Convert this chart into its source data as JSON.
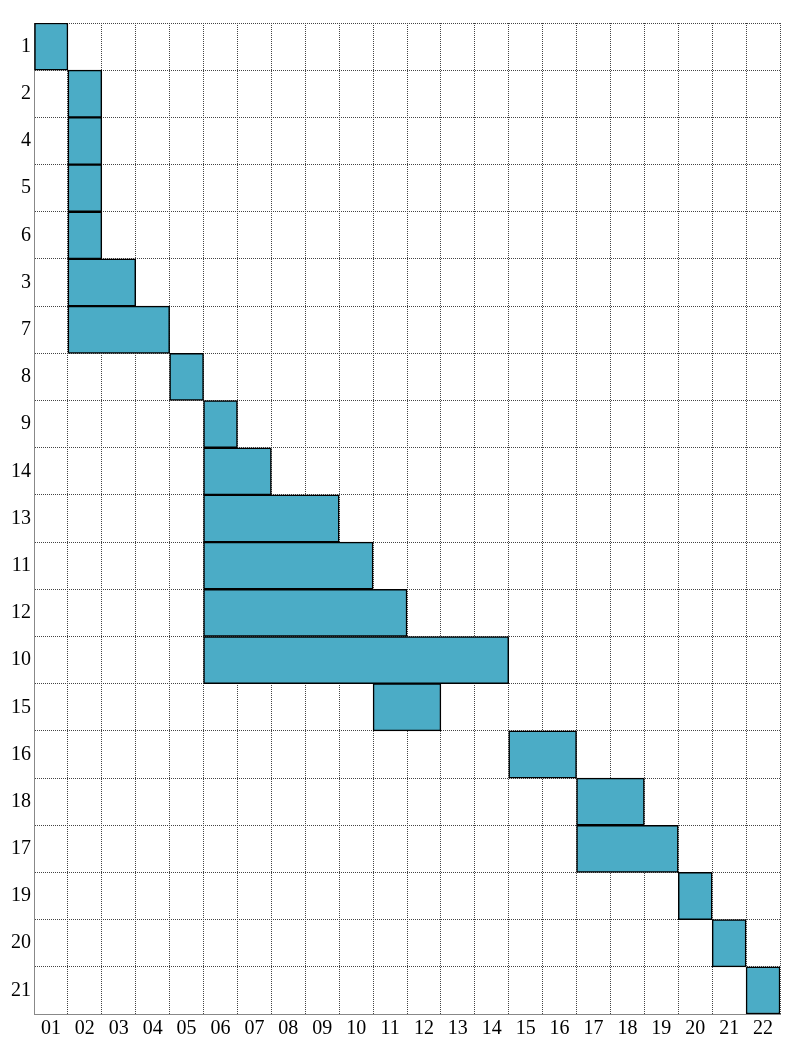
{
  "chart_data": {
    "type": "bar",
    "orientation": "horizontal",
    "color": "#4bacc6",
    "categories": [
      "1",
      "2",
      "4",
      "5",
      "6",
      "3",
      "7",
      "8",
      "9",
      "14",
      "13",
      "11",
      "12",
      "10",
      "15",
      "16",
      "18",
      "17",
      "19",
      "20",
      "21"
    ],
    "base": [
      0,
      1,
      1,
      1,
      1,
      1,
      1,
      4,
      5,
      5,
      5,
      5,
      5,
      5,
      10,
      14,
      16,
      16,
      19,
      20,
      21
    ],
    "values": [
      1,
      1,
      1,
      1,
      1,
      2,
      3,
      1,
      1,
      2,
      4,
      5,
      6,
      9,
      2,
      2,
      2,
      3,
      1,
      1,
      1
    ],
    "xlim": [
      0,
      22
    ],
    "xticks": [
      {
        "value": 0,
        "label": null
      },
      {
        "value": 0.5,
        "label": "01"
      },
      {
        "value": 1,
        "label": null
      },
      {
        "value": 1.5,
        "label": "02"
      },
      {
        "value": 2,
        "label": null
      },
      {
        "value": 2.5,
        "label": "03"
      },
      {
        "value": 3,
        "label": null
      },
      {
        "value": 3.5,
        "label": "04"
      },
      {
        "value": 4,
        "label": null
      },
      {
        "value": 4.5,
        "label": "05"
      },
      {
        "value": 5,
        "label": null
      },
      {
        "value": 5.5,
        "label": "06"
      },
      {
        "value": 6,
        "label": null
      },
      {
        "value": 6.5,
        "label": "07"
      },
      {
        "value": 7,
        "label": null
      },
      {
        "value": 7.5,
        "label": "08"
      },
      {
        "value": 8,
        "label": null
      },
      {
        "value": 8.5,
        "label": "09"
      },
      {
        "value": 9,
        "label": null
      },
      {
        "value": 9.5,
        "label": "10"
      },
      {
        "value": 10,
        "label": null
      },
      {
        "value": 10.5,
        "label": "11"
      },
      {
        "value": 11,
        "label": null
      },
      {
        "value": 11.5,
        "label": "12"
      },
      {
        "value": 12,
        "label": null
      },
      {
        "value": 12.5,
        "label": "13"
      },
      {
        "value": 13,
        "label": null
      },
      {
        "value": 13.5,
        "label": "14"
      },
      {
        "value": 14,
        "label": null
      },
      {
        "value": 14.5,
        "label": "15"
      },
      {
        "value": 15,
        "label": null
      },
      {
        "value": 15.5,
        "label": "16"
      },
      {
        "value": 16,
        "label": null
      },
      {
        "value": 16.5,
        "label": "17"
      },
      {
        "value": 17,
        "label": null
      },
      {
        "value": 17.5,
        "label": "18"
      },
      {
        "value": 18,
        "label": null
      },
      {
        "value": 18.5,
        "label": "19"
      },
      {
        "value": 19,
        "label": null
      },
      {
        "value": 19.5,
        "label": "20"
      },
      {
        "value": 20,
        "label": null
      },
      {
        "value": 20.5,
        "label": "21"
      },
      {
        "value": 21,
        "label": null
      },
      {
        "value": 21.5,
        "label": "22"
      },
      {
        "value": 22,
        "label": null
      }
    ],
    "grid": true,
    "legend": false
  }
}
